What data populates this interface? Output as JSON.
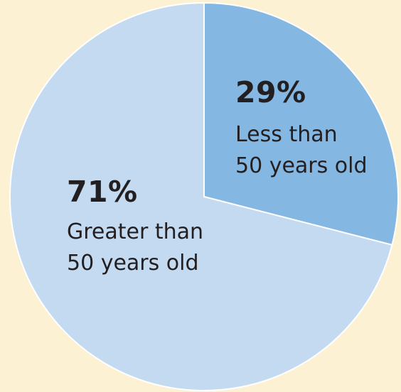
{
  "chart_data": {
    "type": "pie",
    "title": "",
    "slices": [
      {
        "value": 29,
        "percent_label": "29%",
        "label_lines": [
          "Less than",
          "50 years old"
        ],
        "color": "#85b7e3"
      },
      {
        "value": 71,
        "percent_label": "71%",
        "label_lines": [
          "Greater than",
          "50 years old"
        ],
        "color": "#c4daf1"
      }
    ],
    "start": "12 o'clock",
    "direction": "clockwise",
    "legend": "none",
    "slice_border_color": "#ffffff"
  },
  "background_color": "#fcf2d3"
}
